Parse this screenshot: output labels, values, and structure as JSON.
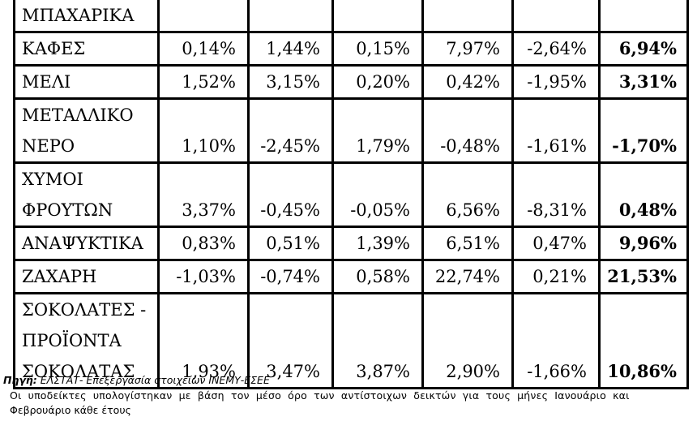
{
  "table": {
    "rows": [
      {
        "label_lines": [
          "ΜΠΑΧΑΡΙΚΑ"
        ],
        "values": [
          "",
          "",
          "",
          "",
          "",
          ""
        ]
      },
      {
        "label_lines": [
          "ΚΑΦΕΣ"
        ],
        "values": [
          "0,14%",
          "1,44%",
          "0,15%",
          "7,97%",
          "-2,64%",
          "6,94%"
        ]
      },
      {
        "label_lines": [
          "ΜΕΛΙ"
        ],
        "values": [
          "1,52%",
          "3,15%",
          "0,20%",
          "0,42%",
          "-1,95%",
          "3,31%"
        ]
      },
      {
        "label_lines": [
          "ΜΕΤΑΛΛΙΚΟ",
          "ΝΕΡΟ"
        ],
        "values": [
          "1,10%",
          "-2,45%",
          "1,79%",
          "-0,48%",
          "-1,61%",
          "-1,70%"
        ]
      },
      {
        "label_lines": [
          "ΧΥΜΟΙ",
          "ΦΡΟΥΤΩΝ"
        ],
        "values": [
          "3,37%",
          "-0,45%",
          "-0,05%",
          "6,56%",
          "-8,31%",
          "0,48%"
        ]
      },
      {
        "label_lines": [
          "ΑΝΑΨΥΚΤΙΚΑ"
        ],
        "values": [
          "0,83%",
          "0,51%",
          "1,39%",
          "6,51%",
          "0,47%",
          "9,96%"
        ]
      },
      {
        "label_lines": [
          "ΖΑΧΑΡΗ"
        ],
        "values": [
          "-1,03%",
          "-0,74%",
          "0,58%",
          "22,74%",
          "0,21%",
          "21,53%"
        ]
      },
      {
        "label_lines": [
          "ΣΟΚΟΛΑΤΕΣ -",
          "ΠΡΟΪΟΝΤΑ",
          "ΣΟΚΟΛΑΤΑΣ"
        ],
        "values": [
          "1,93%",
          "3,47%",
          "3,87%",
          "2,90%",
          "-1,66%",
          "10,86%"
        ]
      }
    ]
  },
  "notes": {
    "source_label": "Πηγή:",
    "source_text": " ΕΛΣΤΑΤ- Επεξεργασία στοιχείων ΙΝΕΜΥ-ΕΣΕΕ",
    "line2": "Οι υποδείκτες  υπολογίστηκαν με βάση τον μέσο όρο των αντίστοιχων δεικτών για    τους μήνες Ιανουάριο και",
    "line3": "Φεβρουάριο κάθε έτους"
  }
}
